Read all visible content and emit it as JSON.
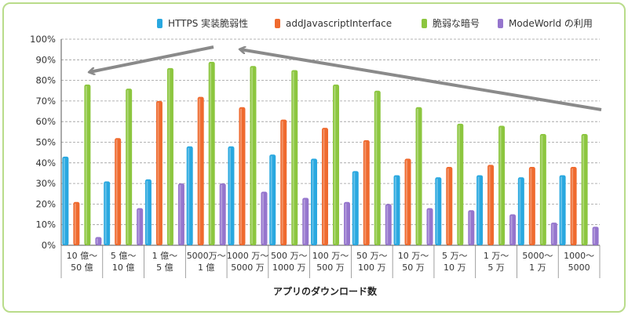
{
  "chart_data": {
    "type": "bar",
    "title": "",
    "xlabel": "アプリのダウンロード数",
    "ylabel": "",
    "ylim": [
      0,
      100
    ],
    "y_ticks": [
      "0%",
      "10%",
      "20%",
      "30%",
      "40%",
      "50%",
      "60%",
      "70%",
      "80%",
      "90%",
      "100%"
    ],
    "grid": "horizontal dashed",
    "legend_position": "top-right",
    "categories": [
      [
        "10 億〜",
        "50 億"
      ],
      [
        "5 億〜",
        "10 億"
      ],
      [
        "1 億〜",
        "5 億"
      ],
      [
        "5000万〜",
        "1 億"
      ],
      [
        "1000 万〜",
        "5000 万"
      ],
      [
        "500 万〜",
        "1000 万"
      ],
      [
        "100 万〜",
        "500 万"
      ],
      [
        "50 万〜",
        "100 万"
      ],
      [
        "10 万〜",
        "50 万"
      ],
      [
        "5 万〜",
        "10 万"
      ],
      [
        "1 万〜",
        "5 万"
      ],
      [
        "5000〜",
        "1 万"
      ],
      [
        "1000〜",
        "5000"
      ]
    ],
    "series": [
      {
        "name": "HTTPS 実装脆弱性",
        "color": "#29a8e0",
        "values": [
          43,
          31,
          32,
          48,
          48,
          44,
          42,
          36,
          34,
          33,
          34,
          33,
          34
        ]
      },
      {
        "name": "addJavascriptInterface",
        "color": "#ef6a2e",
        "values": [
          21,
          52,
          70,
          72,
          67,
          61,
          57,
          51,
          42,
          38,
          39,
          38,
          38
        ]
      },
      {
        "name": "脆弱な暗号",
        "color": "#8cc63f",
        "values": [
          78,
          76,
          86,
          89,
          87,
          85,
          78,
          75,
          67,
          59,
          58,
          54,
          54
        ]
      },
      {
        "name": "ModeWorld の利用",
        "color": "#9575cd",
        "values": [
          4,
          18,
          30,
          30,
          26,
          23,
          21,
          20,
          18,
          17,
          15,
          11,
          9
        ]
      }
    ],
    "annotations": {
      "arrows": "two gray arrows converge near the 5000万〜1 億 category peak"
    }
  }
}
